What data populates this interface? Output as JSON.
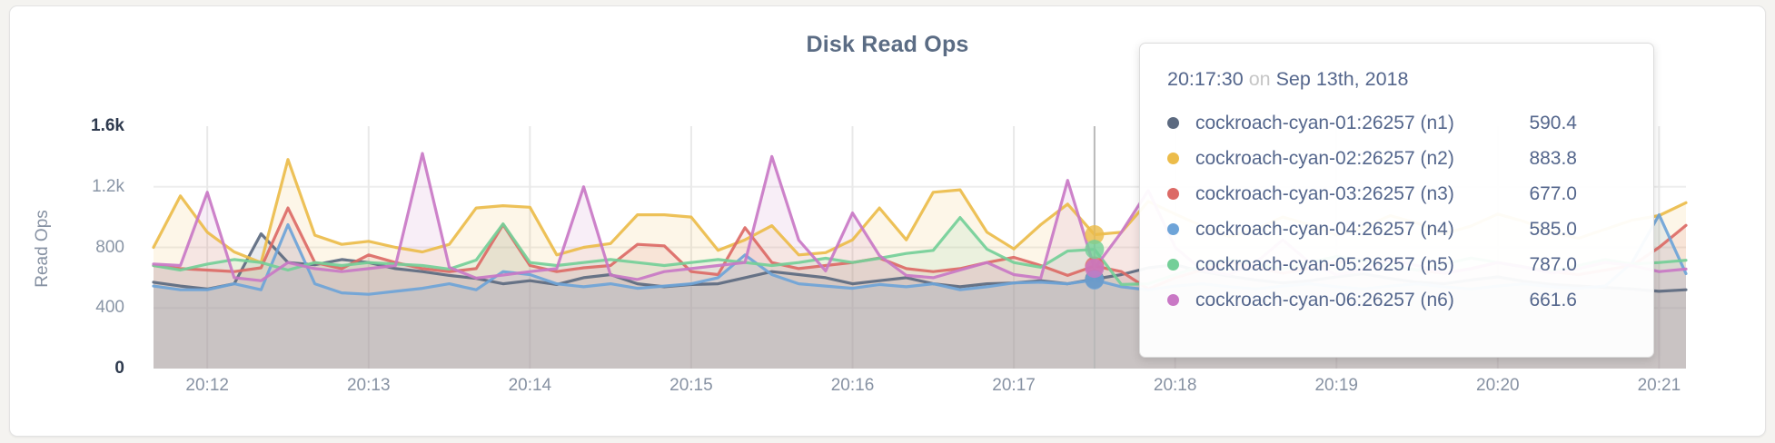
{
  "page": {
    "background": "#f4f3f0"
  },
  "tooltip": {
    "time": "20:17:30",
    "preposition": "on",
    "date": "Sep 13th, 2018",
    "rows": [
      {
        "label": "cockroach-cyan-01:26257 (n1)",
        "value": "590.4"
      },
      {
        "label": "cockroach-cyan-02:26257 (n2)",
        "value": "883.8"
      },
      {
        "label": "cockroach-cyan-03:26257 (n3)",
        "value": "677.0"
      },
      {
        "label": "cockroach-cyan-04:26257 (n4)",
        "value": "585.0"
      },
      {
        "label": "cockroach-cyan-05:26257 (n5)",
        "value": "787.0"
      },
      {
        "label": "cockroach-cyan-06:26257 (n6)",
        "value": "661.6"
      }
    ]
  },
  "chart_data": {
    "type": "line",
    "title": "Disk Read Ops",
    "ylabel": "Read Ops",
    "ylim": [
      0,
      1600
    ],
    "grid": true,
    "legend_position": "tooltip-only",
    "x_start": "20:11:40",
    "x_step_seconds": 10,
    "x_tick_labels": [
      "20:12",
      "20:13",
      "20:14",
      "20:15",
      "20:16",
      "20:17",
      "20:18",
      "20:19",
      "20:20",
      "20:21"
    ],
    "x_tick_indices": [
      2,
      8,
      14,
      20,
      26,
      32,
      38,
      44,
      50,
      56
    ],
    "y_ticks": [
      {
        "value": 0,
        "label": "0",
        "strong": true
      },
      {
        "value": 400,
        "label": "400",
        "strong": false
      },
      {
        "value": 800,
        "label": "800",
        "strong": false
      },
      {
        "value": 1200,
        "label": "1.2k",
        "strong": false
      },
      {
        "value": 1600,
        "label": "1.6k",
        "strong": true
      }
    ],
    "hover": {
      "index": 35,
      "time": "20:17:30",
      "date": "Sep 13th, 2018"
    },
    "series": [
      {
        "name": "cockroach-cyan-01:26257 (n1)",
        "color": "#5c6a80",
        "values": [
          570,
          545,
          525,
          560,
          890,
          700,
          685,
          720,
          700,
          660,
          640,
          615,
          595,
          560,
          580,
          555,
          600,
          620,
          560,
          540,
          555,
          560,
          600,
          640,
          620,
          600,
          560,
          580,
          600,
          560,
          540,
          560,
          565,
          580,
          560,
          590.4,
          620,
          665,
          685,
          640,
          610,
          585,
          565,
          580,
          605,
          625,
          595,
          570,
          560,
          585,
          605,
          575,
          555,
          545,
          535,
          525,
          510,
          520
        ]
      },
      {
        "name": "cockroach-cyan-02:26257 (n2)",
        "color": "#ecbc4a",
        "values": [
          800,
          1140,
          900,
          770,
          700,
          1380,
          880,
          820,
          840,
          800,
          770,
          820,
          1060,
          1075,
          1065,
          750,
          800,
          825,
          1015,
          1015,
          1000,
          780,
          850,
          943,
          750,
          765,
          850,
          1060,
          850,
          1164,
          1180,
          900,
          790,
          950,
          1086,
          883.8,
          900,
          1104,
          1020,
          940,
          870,
          920,
          1000,
          950,
          880,
          930,
          1010,
          960,
          890,
          940,
          1020,
          970,
          900,
          860,
          920,
          980,
          1010,
          1095
        ]
      },
      {
        "name": "cockroach-cyan-03:26257 (n3)",
        "color": "#dc6a66",
        "values": [
          680,
          660,
          650,
          640,
          665,
          1060,
          700,
          660,
          750,
          700,
          660,
          640,
          660,
          950,
          680,
          640,
          665,
          680,
          820,
          810,
          640,
          620,
          930,
          700,
          660,
          680,
          700,
          730,
          660,
          640,
          660,
          700,
          734,
          680,
          615,
          677,
          640,
          525,
          600,
          650,
          700,
          670,
          630,
          660,
          700,
          720,
          680,
          650,
          630,
          660,
          700,
          670,
          640,
          620,
          650,
          680,
          800,
          945
        ]
      },
      {
        "name": "cockroach-cyan-04:26257 (n4)",
        "color": "#6ea4d8",
        "values": [
          545,
          520,
          520,
          560,
          520,
          950,
          560,
          500,
          490,
          510,
          530,
          560,
          520,
          640,
          620,
          560,
          540,
          560,
          530,
          545,
          560,
          600,
          750,
          620,
          560,
          545,
          530,
          555,
          540,
          560,
          520,
          540,
          565,
          570,
          560,
          585,
          540,
          519,
          545,
          560,
          540,
          525,
          545,
          560,
          540,
          525,
          545,
          560,
          540,
          525,
          545,
          560,
          540,
          530,
          545,
          700,
          1015,
          627
        ]
      },
      {
        "name": "cockroach-cyan-05:26257 (n5)",
        "color": "#74cf98",
        "values": [
          680,
          650,
          690,
          720,
          700,
          650,
          700,
          680,
          700,
          690,
          680,
          657,
          716,
          955,
          700,
          680,
          700,
          720,
          700,
          680,
          700,
          720,
          700,
          680,
          700,
          728,
          700,
          728,
          760,
          780,
          997,
          788,
          700,
          669,
          776,
          787,
          555,
          560,
          620,
          680,
          720,
          690,
          660,
          700,
          740,
          710,
          680,
          650,
          690,
          730,
          700,
          670,
          640,
          680,
          720,
          690,
          700,
          715
        ]
      },
      {
        "name": "cockroach-cyan-06:26257 (n6)",
        "color": "#c978c5",
        "values": [
          690,
          680,
          1164,
          600,
          580,
          700,
          660,
          640,
          660,
          680,
          1420,
          668,
          597,
          617,
          640,
          660,
          1200,
          617,
          588,
          640,
          660,
          680,
          700,
          1400,
          848,
          645,
          1027,
          746,
          615,
          600,
          650,
          700,
          620,
          597,
          1242,
          661.6,
          900,
          1176,
          800,
          650,
          620,
          700,
          850,
          700,
          620,
          650,
          720,
          680,
          630,
          660,
          700,
          670,
          630,
          660,
          700,
          680,
          640,
          657
        ]
      }
    ]
  }
}
